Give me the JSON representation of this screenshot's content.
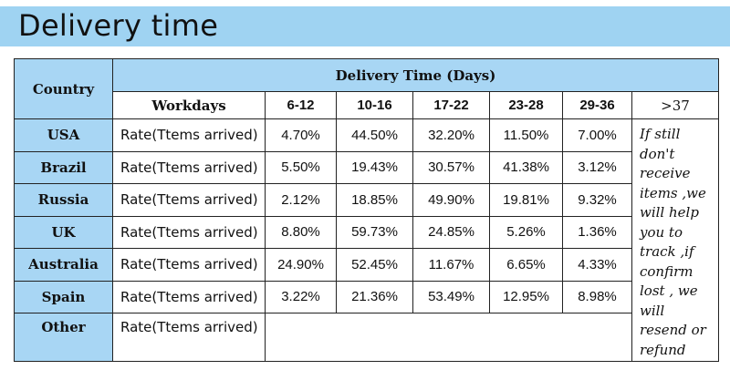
{
  "banner": {
    "title": "Delivery time"
  },
  "table": {
    "country_header": "Country",
    "delivery_header": "Delivery Time (Days)",
    "workdays_label": "Workdays",
    "ranges": [
      "6-12",
      "10-16",
      "17-22",
      "23-28",
      "29-36"
    ],
    "last_range": ">37",
    "rows": [
      {
        "country": "USA",
        "label": "Rate(Ttems arrived)",
        "values": [
          "4.70%",
          "44.50%",
          "32.20%",
          "11.50%",
          "7.00%"
        ]
      },
      {
        "country": "Brazil",
        "label": "Rate(Ttems arrived)",
        "values": [
          "5.50%",
          "19.43%",
          "30.57%",
          "41.38%",
          "3.12%"
        ]
      },
      {
        "country": "Russia",
        "label": "Rate(Ttems arrived)",
        "values": [
          "2.12%",
          "18.85%",
          "49.90%",
          "19.81%",
          "9.32%"
        ]
      },
      {
        "country": "UK",
        "label": "Rate(Ttems arrived)",
        "values": [
          "8.80%",
          "59.73%",
          "24.85%",
          "5.26%",
          "1.36%"
        ]
      },
      {
        "country": "Australia",
        "label": "Rate(Ttems arrived)",
        "values": [
          "24.90%",
          "52.45%",
          "11.67%",
          "6.65%",
          "4.33%"
        ]
      },
      {
        "country": "Spain",
        "label": "Rate(Ttems arrived)",
        "values": [
          "3.22%",
          "21.36%",
          "53.49%",
          "12.95%",
          "8.98%"
        ]
      }
    ],
    "other_row": {
      "country": "Other",
      "label": "Rate(Ttems arrived)"
    },
    "note": "If still don't receive items ,we will help you to track ,if confirm lost , we will resend or refund"
  }
}
